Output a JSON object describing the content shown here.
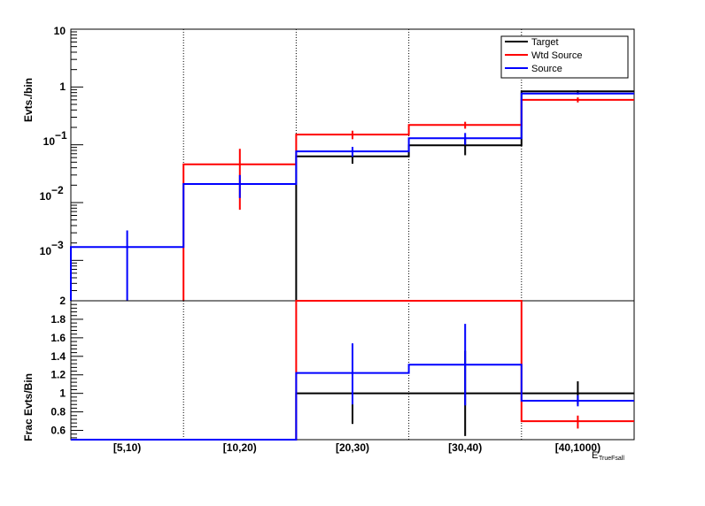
{
  "colors": {
    "target": "#000000",
    "wtd_source": "#ff0000",
    "source": "#0000ff"
  },
  "chart_data": [
    {
      "type": "histogram",
      "title": "",
      "ylabel": "Evts./bin",
      "y_scale": "log",
      "ylim": [
        0.0002,
        10
      ],
      "categories": [
        "[5,10)",
        "[10,20)",
        "[20,30)",
        "[30,40)",
        "[40,1000)"
      ],
      "ytick_labels": {
        "t10": "10",
        "t1": "1",
        "t01": "10",
        "t001": "10",
        "t0001": "10",
        "e01": "−1",
        "e001": "−2",
        "e0001": "−3"
      },
      "grid": "vertical dotted at bin edges",
      "legend": {
        "position": "top-right",
        "entries": [
          "Target",
          "Wtd Source",
          "Source"
        ]
      },
      "series": [
        {
          "name": "Target",
          "values": [
            null,
            null,
            0.063,
            0.098,
            0.84
          ],
          "err_low": [
            null,
            null,
            0.047,
            0.066,
            0.8
          ],
          "err_high": [
            null,
            null,
            0.079,
            0.13,
            0.88
          ]
        },
        {
          "name": "Wtd Source",
          "values": [
            null,
            0.046,
            0.15,
            0.22,
            0.6
          ],
          "err_low": [
            null,
            0.0075,
            0.125,
            0.19,
            0.54
          ],
          "err_high": [
            null,
            0.085,
            0.175,
            0.25,
            0.66
          ]
        },
        {
          "name": "Source",
          "values": [
            0.0017,
            0.021,
            0.077,
            0.13,
            0.77
          ],
          "err_low": [
            0.0002,
            0.012,
            0.062,
            0.1,
            0.74
          ],
          "err_high": [
            0.0033,
            0.03,
            0.092,
            0.16,
            0.8
          ]
        }
      ]
    },
    {
      "type": "histogram",
      "title": "",
      "ylabel": "Frac Evts/Bin",
      "xlabel": "E",
      "xlabel_sub": "TrueFsall",
      "ylim": [
        0.5,
        2.0
      ],
      "yticks": [
        0.6,
        0.8,
        1.0,
        1.2,
        1.4,
        1.6,
        1.8,
        2.0
      ],
      "ytick_labels": [
        "0.6",
        "0.8",
        "1",
        "1.2",
        "1.4",
        "1.6",
        "1.8",
        "2"
      ],
      "categories": [
        "[5,10)",
        "[10,20)",
        "[20,30)",
        "[30,40)",
        "[40,1000)"
      ],
      "series": [
        {
          "name": "Target",
          "values": [
            null,
            null,
            1.0,
            1.0,
            1.0
          ],
          "err_low": [
            null,
            null,
            0.67,
            0.54,
            0.88
          ],
          "err_high": [
            null,
            null,
            1.33,
            1.46,
            1.13
          ]
        },
        {
          "name": "Wtd Source",
          "values": [
            0.5,
            0.5,
            2.0,
            2.0,
            0.7
          ],
          "err_low": [
            null,
            null,
            null,
            null,
            0.62
          ],
          "err_high": [
            null,
            null,
            null,
            null,
            0.76
          ]
        },
        {
          "name": "Source",
          "values": [
            0.5,
            0.5,
            1.22,
            1.31,
            0.92
          ],
          "err_low": [
            null,
            null,
            0.88,
            0.87,
            0.86
          ],
          "err_high": [
            null,
            null,
            1.54,
            1.75,
            0.98
          ]
        }
      ]
    }
  ]
}
